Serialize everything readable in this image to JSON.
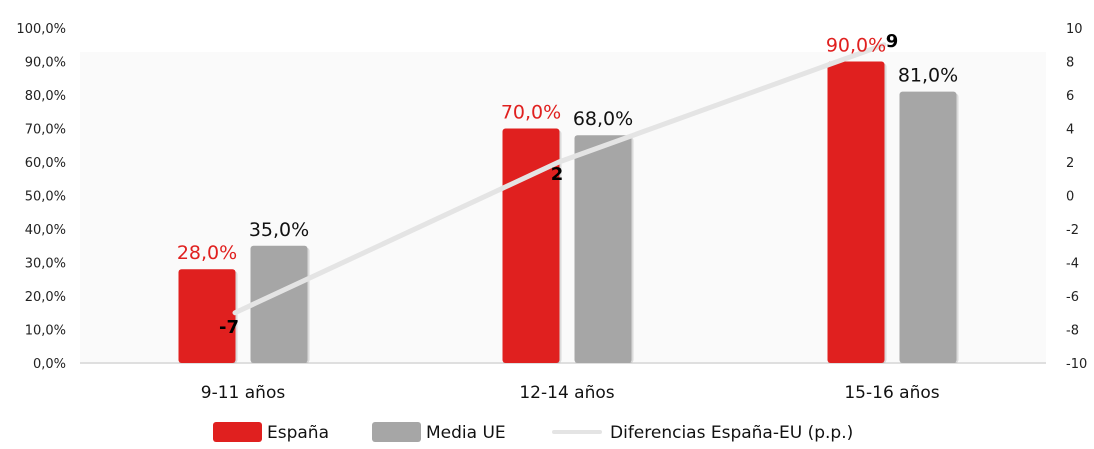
{
  "chart_data": {
    "type": "bar",
    "categories": [
      "9-11 años",
      "12-14 años",
      "15-16 años"
    ],
    "series": [
      {
        "name": "España",
        "type": "bar",
        "axis": "left",
        "color": "#e0201f",
        "values": [
          28.0,
          70.0,
          90.0
        ],
        "labels": [
          "28,0%",
          "70,0%",
          "90,0%"
        ]
      },
      {
        "name": "Media UE",
        "type": "bar",
        "axis": "left",
        "color": "#a6a6a6",
        "values": [
          35.0,
          68.0,
          81.0
        ],
        "labels": [
          "35,0%",
          "68,0%",
          "81,0%"
        ]
      },
      {
        "name": "Diferencias España-EU (p.p.)",
        "type": "line",
        "axis": "right",
        "color": "#e4e4e4",
        "values": [
          -7,
          2,
          9
        ],
        "labels": [
          "-7",
          "2",
          "9"
        ]
      }
    ],
    "y_left": {
      "range": [
        0,
        100
      ],
      "ticks": [
        "0,0%",
        "10,0%",
        "20,0%",
        "30,0%",
        "40,0%",
        "50,0%",
        "60,0%",
        "70,0%",
        "80,0%",
        "90,0%",
        "100,0%"
      ]
    },
    "y_right": {
      "range": [
        -10,
        10
      ],
      "ticks": [
        "-10",
        "-8",
        "-6",
        "-4",
        "-2",
        "0",
        "2",
        "4",
        "6",
        "8",
        "10"
      ]
    },
    "grid": false,
    "legend": "bottom"
  }
}
